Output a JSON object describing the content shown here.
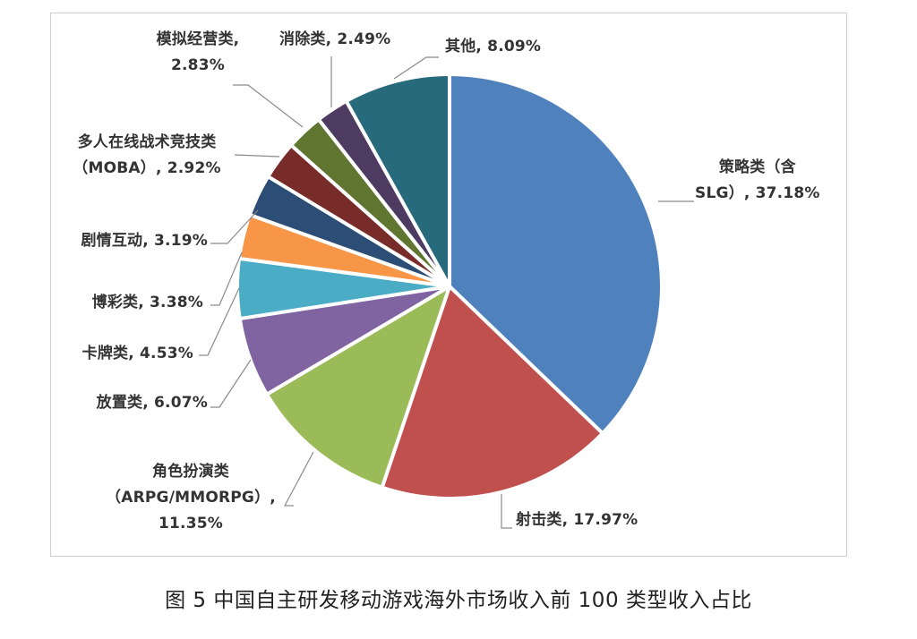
{
  "chart_data": {
    "type": "pie",
    "title": "",
    "caption": "图 5  中国自主研发移动游戏海外市场收入前 100 类型收入占比",
    "start_angle_deg": -90,
    "direction": "clockwise",
    "unit": "%",
    "categories": [
      "策略类（含SLG）",
      "射击类",
      "角色扮演类（ARPG/MMORPG）",
      "放置类",
      "卡牌类",
      "博彩类",
      "剧情互动",
      "多人在线战术竞技类（MOBA）",
      "模拟经营类",
      "消除类",
      "其他"
    ],
    "values": [
      37.18,
      17.97,
      11.35,
      6.07,
      4.53,
      3.38,
      3.19,
      2.92,
      2.83,
      2.49,
      8.09
    ],
    "colors": [
      "#4F81BD",
      "#C0504D",
      "#9BBB59",
      "#8064A2",
      "#4BACC6",
      "#F79646",
      "#2C4D75",
      "#772C2A",
      "#5F7530",
      "#4D3B62",
      "#276A7C"
    ],
    "legend": "none (data labels with leader lines)"
  },
  "labels": {
    "slg": {
      "line1": "策略类（含",
      "line2": "SLG）, 37.18%"
    },
    "shooter": {
      "line1": "射击类, 17.97%"
    },
    "rpg": {
      "line1": "角色扮演类",
      "line2": "（ARPG/MMORPG）,",
      "line3": "11.35%"
    },
    "idle": {
      "line1": "放置类, 6.07%"
    },
    "card": {
      "line1": "卡牌类, 4.53%"
    },
    "gambling": {
      "line1": "博彩类, 3.38%"
    },
    "interactive": {
      "line1": "剧情互动, 3.19%"
    },
    "moba": {
      "line1": "多人在线战术竞技类",
      "line2": "（MOBA）, 2.92%"
    },
    "sim": {
      "line1": "模拟经营类,",
      "line2": "2.83%"
    },
    "match3": {
      "line1": "消除类, 2.49%"
    },
    "other": {
      "line1": "其他, 8.09%"
    }
  },
  "caption": "图 5  中国自主研发移动游戏海外市场收入前 100 类型收入占比"
}
